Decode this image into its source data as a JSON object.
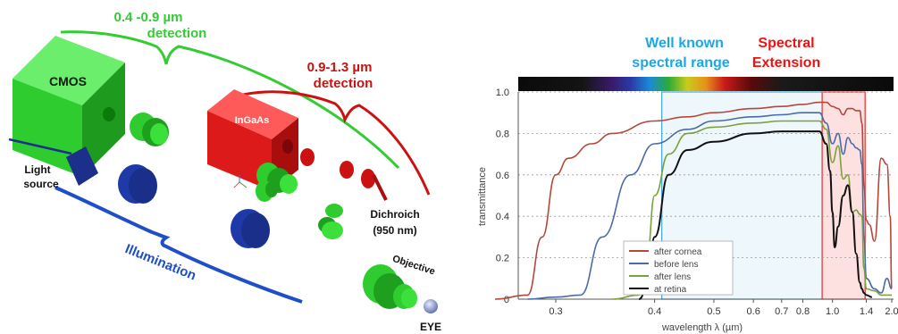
{
  "diagram": {
    "labels": {
      "vis_range": "0.4 -0.9 µm",
      "vis_detection": "detection",
      "ir_range": "0.9-1.3 µm",
      "ir_detection": "detection",
      "cmos": "CMOS",
      "ingaas": "InGaAs",
      "light1": "Light",
      "light2": "source",
      "illumination": "Illumination",
      "dichroich1": "Dichroich",
      "dichroich2": "(950 nm)",
      "objective": "Objective",
      "eye": "EYE"
    },
    "colors": {
      "green": "#2ecc2e",
      "dark_green": "#1e9a1e",
      "red": "#dd1a1a",
      "blue": "#1f4ec9",
      "dark_blue": "#1c2f8a",
      "label_green": "#33cc33",
      "label_red": "#cc1111",
      "label_blue": "#1f4ec9"
    }
  },
  "chart_data": {
    "type": "line",
    "annotations": {
      "known1": "Well known",
      "known2": "spectral range",
      "ext1": "Spectral",
      "ext2": "Extension"
    },
    "annotation_colors": {
      "known": "#1aa7e8",
      "ext": "#ee1111"
    },
    "ylabel": "transmittance",
    "xlabel": "wavelength λ (µm)",
    "ylim": [
      0,
      1.0
    ],
    "xlim": [
      0.2,
      2.0
    ],
    "x_scale": "reciprocal",
    "x_ticks": [
      0.3,
      0.4,
      0.5,
      0.6,
      0.7,
      0.8,
      1.0,
      1.4,
      2.0
    ],
    "x_tick_labels": [
      "0.3",
      "0.4",
      "0.5",
      "0.6",
      "0.7",
      "0.8",
      "1.0",
      "1.4",
      "2.0"
    ],
    "y_ticks": [
      0,
      0.2,
      0.4,
      0.6,
      0.8,
      1.0
    ],
    "y_tick_labels": [
      "0",
      "0.2",
      "0.4",
      "0.6",
      "0.8",
      "1.0"
    ],
    "grid": true,
    "legend_position": "bottom-left",
    "highlight_known": [
      0.41,
      0.92
    ],
    "highlight_extension": [
      0.92,
      1.38
    ],
    "series": [
      {
        "name": "after cornea",
        "color": "#b5473a",
        "x": [
          0.26,
          0.28,
          0.29,
          0.3,
          0.31,
          0.33,
          0.35,
          0.4,
          0.45,
          0.5,
          0.6,
          0.7,
          0.8,
          0.9,
          0.95,
          1.0,
          1.05,
          1.1,
          1.15,
          1.2,
          1.25,
          1.3,
          1.33,
          1.36,
          1.4,
          1.45,
          1.55,
          1.7,
          1.85,
          1.95,
          2.0
        ],
        "y": [
          0,
          0.02,
          0.3,
          0.6,
          0.68,
          0.75,
          0.8,
          0.86,
          0.88,
          0.9,
          0.92,
          0.93,
          0.94,
          0.95,
          0.95,
          0.93,
          0.92,
          0.89,
          0.92,
          0.92,
          0.91,
          0.91,
          0.85,
          0.55,
          0.38,
          0.36,
          0.28,
          0.68,
          0.65,
          0.4,
          0.05
        ]
      },
      {
        "name": "before lens",
        "color": "#4a6aa8",
        "x": [
          0.28,
          0.3,
          0.32,
          0.34,
          0.37,
          0.4,
          0.45,
          0.5,
          0.6,
          0.7,
          0.8,
          0.9,
          0.95,
          1.0,
          1.05,
          1.1,
          1.15,
          1.2,
          1.25,
          1.3,
          1.33,
          1.36,
          1.4,
          1.55,
          1.7,
          1.85,
          2.0
        ],
        "y": [
          0,
          0.01,
          0.02,
          0.3,
          0.6,
          0.75,
          0.82,
          0.86,
          0.88,
          0.89,
          0.9,
          0.9,
          0.85,
          0.75,
          0.8,
          0.7,
          0.78,
          0.75,
          0.73,
          0.72,
          0.65,
          0.3,
          0.1,
          0.05,
          0.03,
          0.1,
          0.05
        ]
      },
      {
        "name": "after lens",
        "color": "#7aa13a",
        "x": [
          0.35,
          0.38,
          0.39,
          0.4,
          0.42,
          0.45,
          0.5,
          0.6,
          0.7,
          0.8,
          0.9,
          0.95,
          1.0,
          1.05,
          1.1,
          1.15,
          1.2,
          1.25,
          1.3,
          1.33,
          1.36,
          1.4,
          1.55,
          1.7,
          1.85,
          2.0
        ],
        "y": [
          0,
          0.02,
          0.2,
          0.5,
          0.7,
          0.8,
          0.83,
          0.85,
          0.86,
          0.86,
          0.86,
          0.82,
          0.66,
          0.74,
          0.58,
          0.6,
          0.42,
          0.43,
          0.41,
          0.4,
          0.15,
          0.05,
          0.04,
          0.02,
          0.02,
          0.02
        ]
      },
      {
        "name": "at retina",
        "color": "#111111",
        "x": [
          0.38,
          0.39,
          0.4,
          0.42,
          0.45,
          0.5,
          0.6,
          0.7,
          0.8,
          0.9,
          0.95,
          0.98,
          1.0,
          1.02,
          1.05,
          1.1,
          1.15,
          1.2,
          1.25,
          1.3,
          1.33,
          1.36,
          1.4,
          1.5
        ],
        "y": [
          0,
          0.05,
          0.3,
          0.6,
          0.72,
          0.76,
          0.8,
          0.81,
          0.81,
          0.81,
          0.75,
          0.62,
          0.42,
          0.25,
          0.35,
          0.5,
          0.55,
          0.42,
          0.22,
          0.08,
          0.05,
          0.03,
          0.02,
          0.01
        ]
      }
    ]
  }
}
